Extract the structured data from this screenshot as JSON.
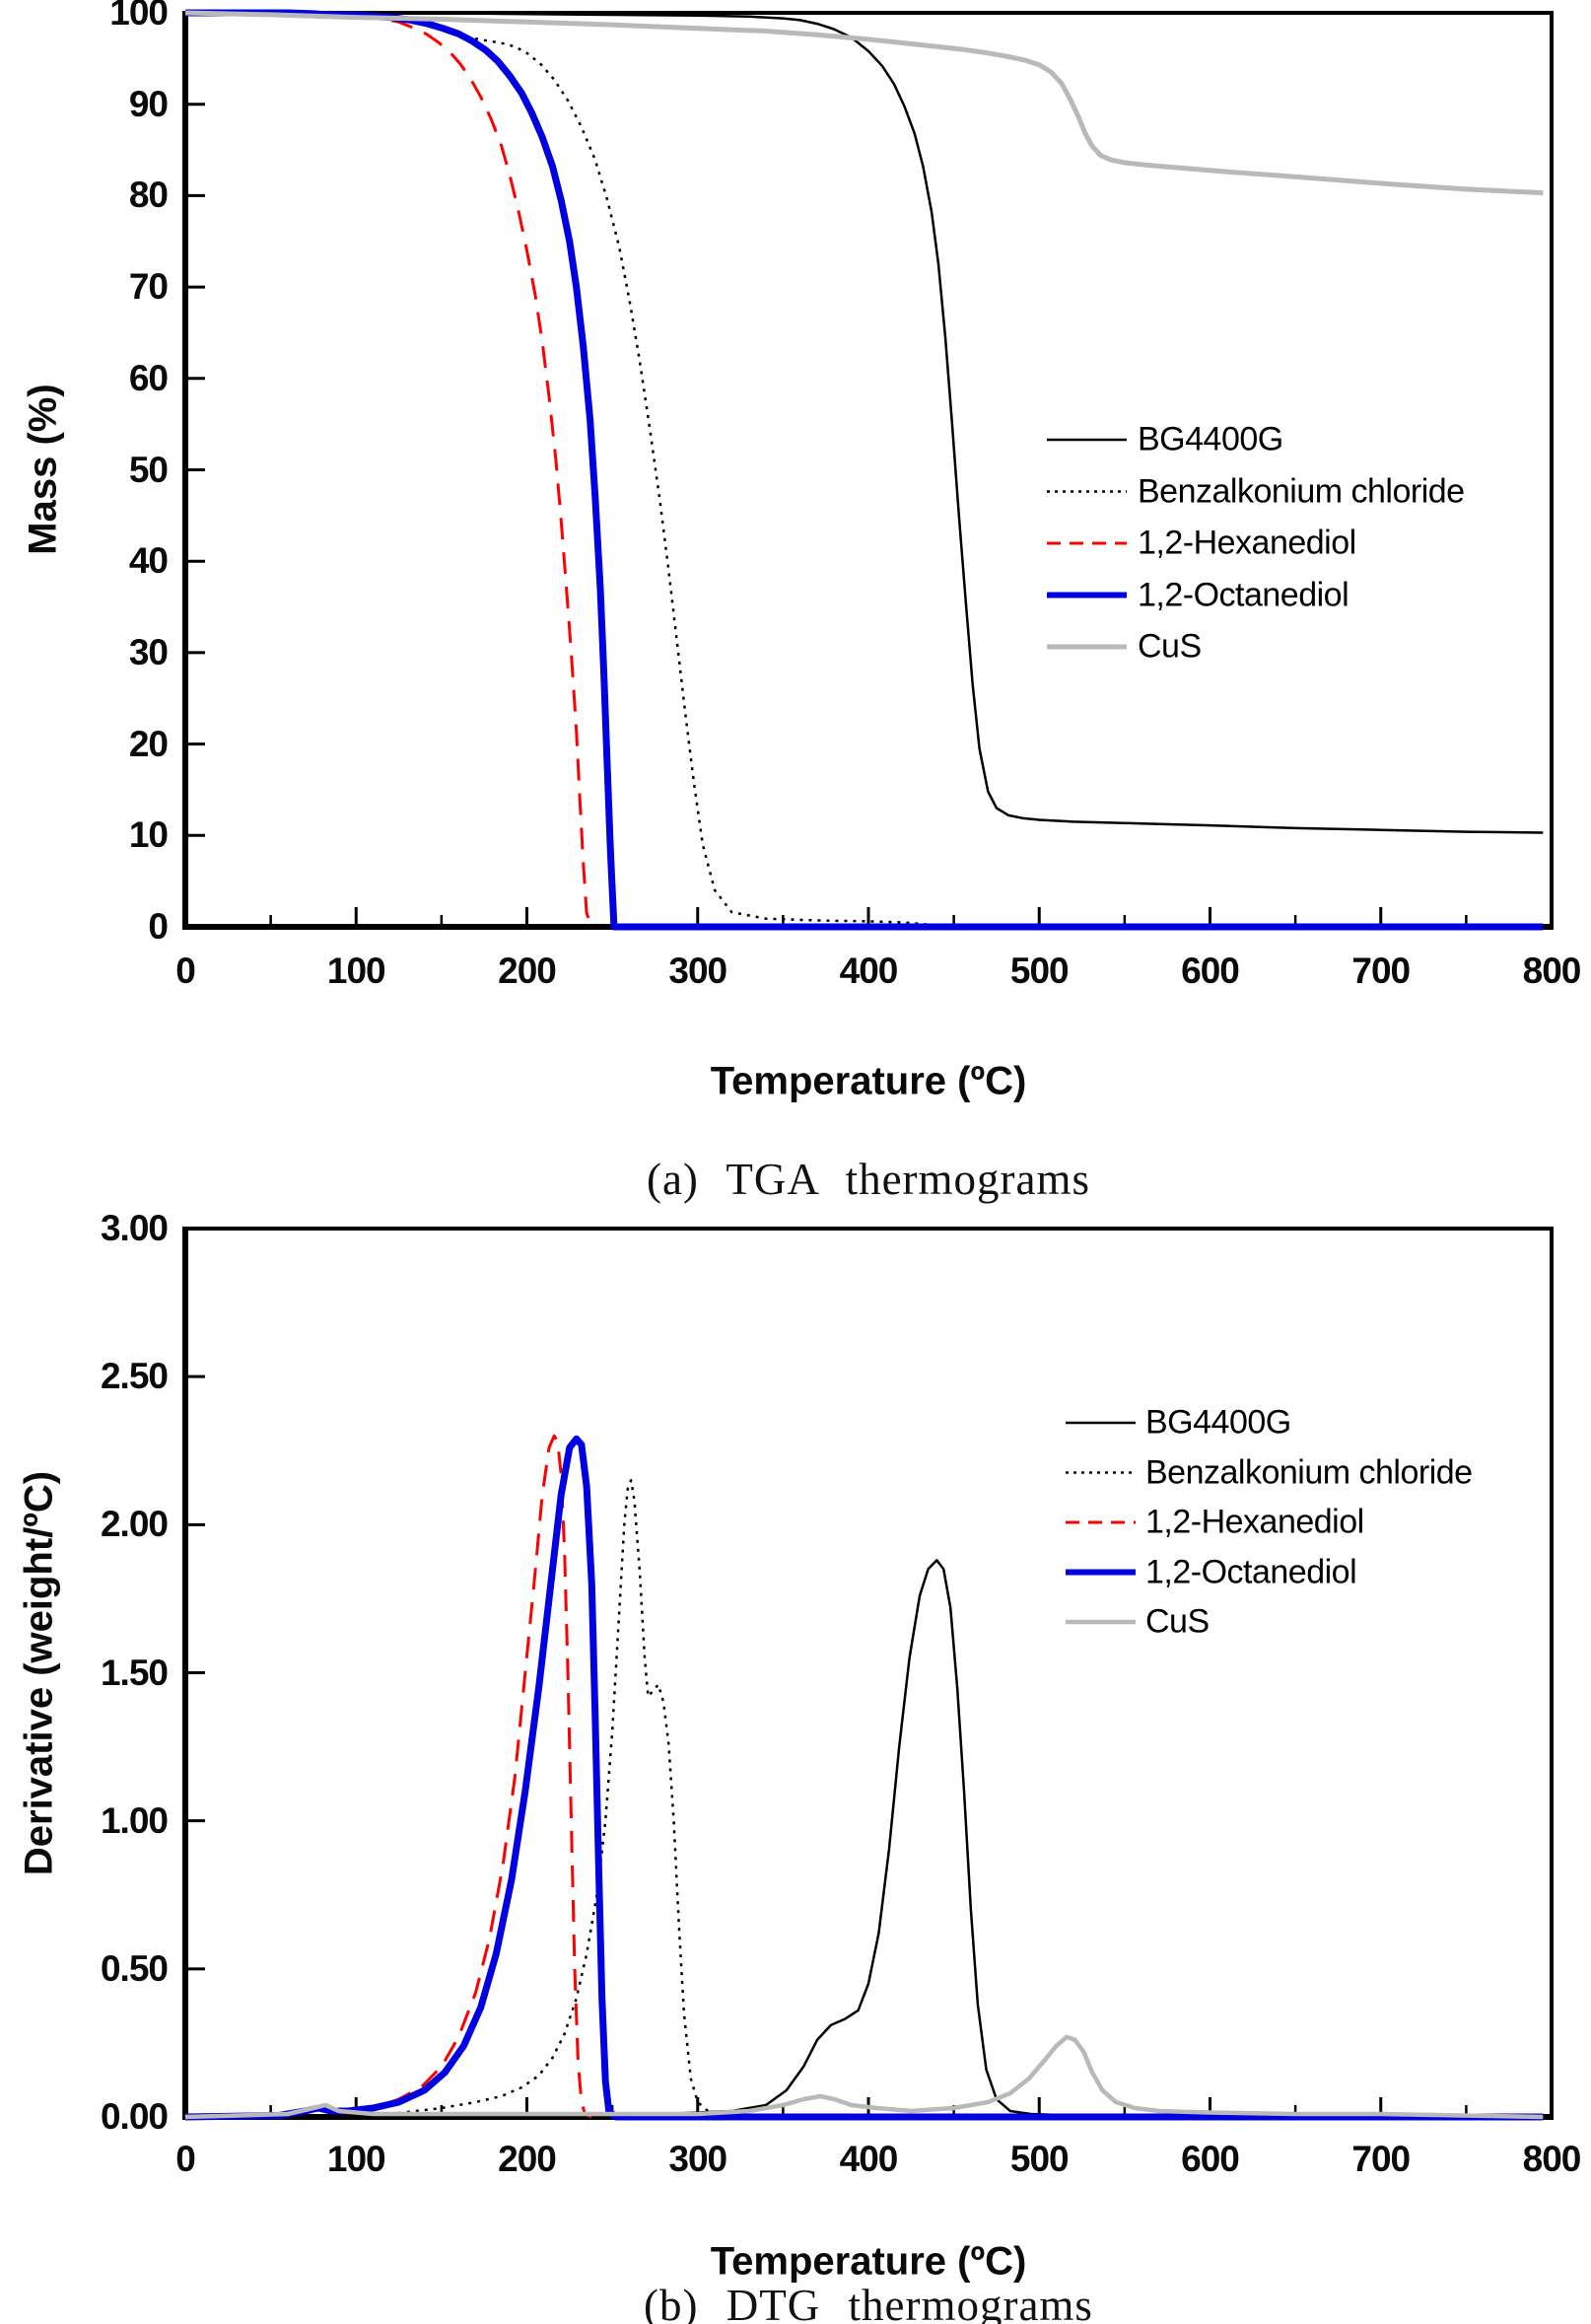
{
  "page": {
    "background": "#ffffff",
    "frame_color": "#000000"
  },
  "captions": {
    "a": "(a) TGA thermograms",
    "b": "(b) DTG thermograms"
  },
  "chart_data": [
    {
      "type": "line",
      "panel": "a",
      "title": "(a) TGA thermograms",
      "xlabel": "Temperature (ºC)",
      "ylabel": "Mass (%)",
      "xlim": [
        0,
        800
      ],
      "ylim": [
        0,
        100
      ],
      "xticks": [
        0,
        100,
        200,
        300,
        400,
        500,
        600,
        700,
        800
      ],
      "xticklabels": [
        "0",
        "100",
        "200",
        "300",
        "400",
        "500",
        "600",
        "700",
        "800"
      ],
      "yticks": [
        0,
        10,
        20,
        30,
        40,
        50,
        60,
        70,
        80,
        90,
        100
      ],
      "yticklabels": [
        "0",
        "10",
        "20",
        "30",
        "40",
        "50",
        "60",
        "70",
        "80",
        "90",
        "100"
      ],
      "grid": false,
      "legend_position": "right-middle",
      "series": [
        {
          "name": "BG4400G",
          "color": "#000000",
          "width": 2.5,
          "dash": "",
          "x": [
            0,
            60,
            120,
            180,
            240,
            300,
            330,
            350,
            360,
            370,
            380,
            390,
            400,
            408,
            415,
            421,
            427,
            432,
            437,
            441,
            445,
            449,
            453,
            457,
            461,
            465,
            470,
            475,
            482,
            490,
            500,
            520,
            560,
            600,
            650,
            700,
            750,
            795
          ],
          "y": [
            100,
            100,
            100,
            99.9,
            99.8,
            99.7,
            99.6,
            99.4,
            99.2,
            98.8,
            98.2,
            97.3,
            95.8,
            94.2,
            92.2,
            89.8,
            86.8,
            83.2,
            78.2,
            72.5,
            64.5,
            55,
            45,
            35.5,
            26.5,
            19.5,
            14.8,
            13,
            12.2,
            11.9,
            11.7,
            11.5,
            11.3,
            11.1,
            10.8,
            10.6,
            10.4,
            10.3
          ]
        },
        {
          "name": "Benzalkonium chloride",
          "color": "#000000",
          "width": 2.5,
          "dash": "3 6",
          "x": [
            0,
            60,
            100,
            120,
            135,
            148,
            158,
            166,
            175,
            185,
            193,
            200,
            208,
            216,
            224,
            232,
            240,
            247,
            254,
            260,
            266,
            272,
            278,
            283,
            288,
            293,
            298,
            303,
            310,
            320,
            340,
            370,
            400,
            420,
            432,
            445,
            795
          ],
          "y": [
            100,
            100,
            99.8,
            99.5,
            99,
            98.4,
            97.8,
            97.3,
            97,
            96.7,
            96.3,
            95.6,
            94.4,
            92.7,
            90.4,
            87.5,
            83.9,
            79.6,
            74.4,
            68.6,
            62,
            54.5,
            46.5,
            39,
            31,
            23,
            15.5,
            9,
            4,
            1.6,
            0.9,
            0.7,
            0.6,
            0.5,
            0.3,
            0.05,
            0.05
          ]
        },
        {
          "name": "1,2-Hexanediol",
          "color": "#ff0000",
          "width": 3,
          "dash": "22 13",
          "x": [
            0,
            60,
            90,
            105,
            115,
            125,
            133,
            141,
            148,
            155,
            161,
            167,
            173,
            179,
            185,
            190,
            195,
            200,
            205,
            209,
            213,
            217,
            220,
            223,
            226,
            229,
            231,
            233,
            235,
            238
          ],
          "y": [
            100,
            100,
            99.9,
            99.7,
            99.4,
            99,
            98.4,
            97.7,
            96.8,
            95.7,
            94.4,
            92.8,
            90.8,
            88.4,
            85.5,
            82.2,
            78.4,
            74,
            69,
            64,
            58,
            51,
            44.5,
            37.5,
            30,
            21.5,
            14,
            7,
            1.5,
            0
          ]
        },
        {
          "name": "1,2-Octanediol",
          "color": "#0000e0",
          "width": 7,
          "dash": "",
          "x": [
            0,
            60,
            75,
            82,
            90,
            105,
            120,
            132,
            142,
            151,
            160,
            168,
            176,
            183,
            190,
            197,
            203,
            209,
            215,
            220,
            225,
            229,
            233,
            237,
            240,
            243,
            245,
            247,
            249,
            251,
            795
          ],
          "y": [
            100,
            100,
            99.9,
            99.8,
            99.8,
            99.7,
            99.5,
            99.2,
            98.8,
            98.3,
            97.7,
            96.9,
            95.9,
            94.7,
            93.1,
            91.2,
            89,
            86.4,
            83.2,
            79.5,
            75,
            70,
            63.5,
            55.5,
            47,
            37,
            28,
            18,
            8,
            0,
            0
          ]
        },
        {
          "name": "CuS",
          "color": "#b9b9b9",
          "width": 5,
          "dash": "",
          "x": [
            0,
            50,
            100,
            150,
            200,
            250,
            300,
            340,
            370,
            400,
            430,
            455,
            470,
            482,
            492,
            500,
            507,
            513,
            518,
            523,
            527,
            531,
            536,
            542,
            550,
            565,
            585,
            610,
            640,
            675,
            710,
            750,
            795
          ],
          "y": [
            100,
            99.8,
            99.5,
            99.3,
            99,
            98.7,
            98.3,
            98,
            97.6,
            97.1,
            96.5,
            96,
            95.6,
            95.2,
            94.8,
            94.3,
            93.5,
            92.3,
            90.6,
            88.6,
            86.8,
            85.4,
            84.4,
            83.9,
            83.6,
            83.3,
            83,
            82.6,
            82.2,
            81.7,
            81.2,
            80.7,
            80.3
          ]
        }
      ]
    },
    {
      "type": "line",
      "panel": "b",
      "title": "(b) DTG thermograms",
      "xlabel": "Temperature (ºC)",
      "ylabel": "Derivative (weight/ºC)",
      "xlim": [
        0,
        800
      ],
      "ylim": [
        0,
        3
      ],
      "xticks": [
        0,
        100,
        200,
        300,
        400,
        500,
        600,
        700,
        800
      ],
      "xticklabels": [
        "0",
        "100",
        "200",
        "300",
        "400",
        "500",
        "600",
        "700",
        "800"
      ],
      "yticks": [
        0,
        0.5,
        1,
        1.5,
        2,
        2.5,
        3
      ],
      "yticklabels": [
        "0.00",
        "0.50",
        "1.00",
        "1.50",
        "2.00",
        "2.50",
        "3.00"
      ],
      "grid": false,
      "legend_position": "right-upper",
      "series": [
        {
          "name": "BG4400G",
          "color": "#000000",
          "width": 2.5,
          "dash": "",
          "x": [
            0,
            100,
            200,
            280,
            320,
            340,
            352,
            362,
            370,
            378,
            386,
            394,
            400,
            406,
            412,
            418,
            424,
            430,
            435,
            440,
            444,
            448,
            452,
            456,
            460,
            464,
            469,
            475,
            483,
            495,
            520,
            600,
            700,
            795
          ],
          "y": [
            0,
            0.005,
            0.005,
            0.01,
            0.02,
            0.04,
            0.09,
            0.17,
            0.26,
            0.31,
            0.33,
            0.36,
            0.45,
            0.62,
            0.9,
            1.25,
            1.55,
            1.76,
            1.85,
            1.88,
            1.85,
            1.72,
            1.45,
            1.1,
            0.7,
            0.38,
            0.16,
            0.06,
            0.02,
            0.01,
            0.005,
            0.005,
            0.005,
            0
          ]
        },
        {
          "name": "Benzalkonium chloride",
          "color": "#000000",
          "width": 2.5,
          "dash": "3 6",
          "x": [
            0,
            80,
            120,
            150,
            170,
            185,
            197,
            207,
            215,
            222,
            229,
            235,
            241,
            246,
            250,
            254,
            257,
            259,
            261,
            263,
            266,
            269,
            271,
            274,
            277,
            280,
            283,
            286,
            289,
            292,
            296,
            300,
            306,
            315,
            330,
            795
          ],
          "y": [
            0,
            0.005,
            0.01,
            0.03,
            0.05,
            0.07,
            0.1,
            0.14,
            0.2,
            0.28,
            0.4,
            0.55,
            0.75,
            1,
            1.3,
            1.7,
            2,
            2.12,
            2.15,
            2.08,
            1.85,
            1.55,
            1.42,
            1.44,
            1.46,
            1.4,
            1.26,
            1,
            0.65,
            0.35,
            0.13,
            0.05,
            0.02,
            0.005,
            0.005,
            0
          ]
        },
        {
          "name": "1,2-Hexanediol",
          "color": "#ff0000",
          "width": 3,
          "dash": "22 13",
          "x": [
            0,
            60,
            80,
            95,
            110,
            125,
            138,
            150,
            160,
            170,
            178,
            186,
            193,
            199,
            205,
            209,
            213,
            216,
            218,
            220,
            222,
            224,
            226,
            228,
            230,
            232,
            234,
            238
          ],
          "y": [
            0,
            0.01,
            0.02,
            0.02,
            0.03,
            0.06,
            0.1,
            0.17,
            0.27,
            0.42,
            0.6,
            0.85,
            1.15,
            1.5,
            1.85,
            2.1,
            2.26,
            2.3,
            2.28,
            2.17,
            1.92,
            1.5,
            1,
            0.5,
            0.18,
            0.05,
            0.01,
            0
          ]
        },
        {
          "name": "1,2-Octanediol",
          "color": "#0000e0",
          "width": 7,
          "dash": "",
          "x": [
            0,
            55,
            70,
            78,
            85,
            95,
            110,
            125,
            140,
            152,
            163,
            173,
            182,
            191,
            199,
            207,
            214,
            220,
            225,
            229,
            232,
            235,
            238,
            240,
            242,
            244,
            246,
            248,
            252,
            795
          ],
          "y": [
            0,
            0.005,
            0.02,
            0.03,
            0.02,
            0.02,
            0.03,
            0.05,
            0.09,
            0.15,
            0.24,
            0.37,
            0.55,
            0.8,
            1.1,
            1.45,
            1.8,
            2.1,
            2.26,
            2.29,
            2.27,
            2.13,
            1.8,
            1.35,
            0.85,
            0.4,
            0.12,
            0.02,
            0,
            0
          ]
        },
        {
          "name": "CuS",
          "color": "#b9b9b9",
          "width": 4.5,
          "dash": "",
          "x": [
            0,
            60,
            75,
            82,
            90,
            110,
            150,
            200,
            250,
            300,
            330,
            350,
            362,
            372,
            380,
            390,
            405,
            425,
            450,
            470,
            483,
            494,
            503,
            510,
            516,
            521,
            526,
            531,
            537,
            545,
            556,
            570,
            600,
            650,
            700,
            795
          ],
          "y": [
            0,
            0.01,
            0.03,
            0.04,
            0.02,
            0.01,
            0.01,
            0.01,
            0.01,
            0.01,
            0.02,
            0.04,
            0.06,
            0.07,
            0.06,
            0.04,
            0.03,
            0.02,
            0.03,
            0.05,
            0.08,
            0.13,
            0.19,
            0.24,
            0.27,
            0.26,
            0.22,
            0.15,
            0.09,
            0.05,
            0.03,
            0.02,
            0.015,
            0.01,
            0.01,
            0
          ]
        }
      ]
    }
  ]
}
